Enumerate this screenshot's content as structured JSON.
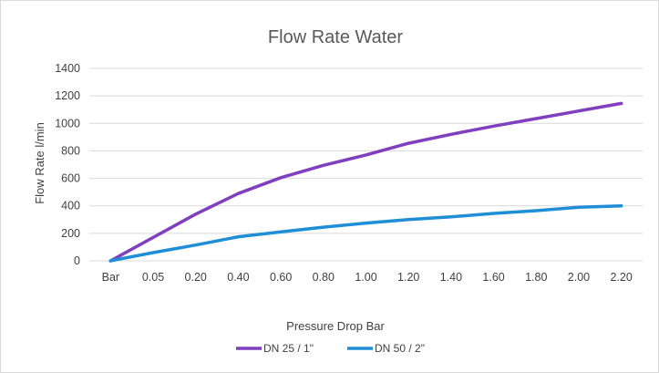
{
  "chart_data": {
    "type": "line",
    "title": "Flow Rate Water",
    "xlabel": "Pressure Drop Bar",
    "ylabel": "Flow Rate l/min",
    "categories": [
      "Bar",
      "0.05",
      "0.20",
      "0.40",
      "0.60",
      "0.80",
      "1.00",
      "1.20",
      "1.40",
      "1.60",
      "1.80",
      "2.00",
      "2.20"
    ],
    "ylim": [
      0,
      1400
    ],
    "yticks": [
      "0",
      "200",
      "400",
      "600",
      "800",
      "1000",
      "1200",
      "1400"
    ],
    "grid": true,
    "legend_position": "bottom",
    "series": [
      {
        "name": "DN 25 / 1\"",
        "color": "#7f3fbf",
        "values": [
          0,
          170,
          340,
          490,
          605,
          695,
          770,
          855,
          920,
          980,
          1035,
          1090,
          1145
        ]
      },
      {
        "name": "DN 50 / 2\"",
        "color": "#1e8fd6",
        "values": [
          0,
          60,
          115,
          175,
          210,
          245,
          275,
          300,
          320,
          345,
          365,
          390,
          400
        ]
      }
    ]
  }
}
